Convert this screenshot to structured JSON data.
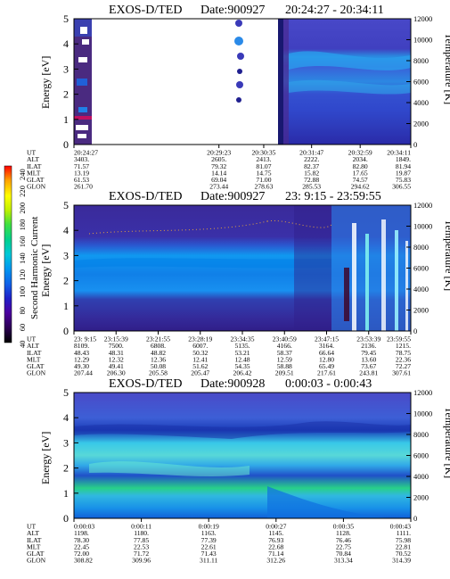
{
  "colorbar": {
    "label": "Second Harmonic Current",
    "ticks": [
      "40",
      "60",
      "80",
      "100",
      "120",
      "140",
      "160",
      "180",
      "200",
      "220",
      "240"
    ],
    "colors": [
      "#000000",
      "#2a0050",
      "#4b00a0",
      "#2020c8",
      "#1060e8",
      "#0098f0",
      "#00c8d8",
      "#00d090",
      "#40e040",
      "#c0f000",
      "#ffff00",
      "#ffa000",
      "#ff0000"
    ]
  },
  "panels": [
    {
      "title": "EXOS-D/TED",
      "date": "Date:900927",
      "time_range": "20:24:27 - 20:34:11",
      "ylabel": "Energy [eV]",
      "y2label": "Temperature [K]",
      "ytick_labels": [
        "0",
        "1",
        "2",
        "3",
        "4",
        "5"
      ],
      "y2tick_labels": [
        "0",
        "2000",
        "4000",
        "6000",
        "8000",
        "10000",
        "12000"
      ],
      "ephem_labels": [
        "UT",
        "ALT",
        "ILAT",
        "MLT",
        "GLAT",
        "GLON"
      ],
      "columns": [
        {
          "frac": 0.0,
          "vals": [
            "20:24:27",
            "3403.",
            "71.57",
            "13.19",
            "61.53",
            "261.70"
          ]
        },
        {
          "frac": 0.4304,
          "vals": [
            "20:29:23",
            "2605.",
            "79.32",
            "14.14",
            "69.04",
            "273.44"
          ]
        },
        {
          "frac": 0.5634,
          "vals": [
            "20:30:35",
            "2413.",
            "81.07",
            "14.75",
            "71.00",
            "278.63"
          ]
        },
        {
          "frac": 0.7055,
          "vals": [
            "20:31:47",
            "2222.",
            "82.37",
            "15.82",
            "72.88",
            "285.53"
          ]
        },
        {
          "frac": 0.8497,
          "vals": [
            "20:32:59",
            "2034.",
            "82.80",
            "17.65",
            "74.57",
            "294.62"
          ]
        },
        {
          "frac": 1.0,
          "vals": [
            "20:34:11",
            "1849.",
            "81.94",
            "19.87",
            "75.83",
            "306.55"
          ]
        }
      ]
    },
    {
      "title": "EXOS-D/TED",
      "date": "Date:900927",
      "time_range": "23: 9:15 - 23:59:55",
      "ylabel": "Energy [eV]",
      "y2label": "Temperature [K]",
      "ytick_labels": [
        "0",
        "1",
        "2",
        "3",
        "4",
        "5"
      ],
      "y2tick_labels": [
        "0",
        "2000",
        "4000",
        "6000",
        "8000",
        "10000",
        "12000"
      ],
      "ephem_labels": [
        "UT",
        "ALT",
        "ILAT",
        "MLT",
        "GLAT",
        "GLON"
      ],
      "columns": [
        {
          "frac": 0.0,
          "vals": [
            "23: 9:15",
            "8109.",
            "48.43",
            "12.29",
            "49.30",
            "207.44"
          ]
        },
        {
          "frac": 0.125,
          "vals": [
            "23:15:39",
            "7500.",
            "48.31",
            "12.32",
            "49.41",
            "206.30"
          ]
        },
        {
          "frac": 0.25,
          "vals": [
            "23:21:55",
            "6808.",
            "48.82",
            "12.36",
            "50.08",
            "205.58"
          ]
        },
        {
          "frac": 0.375,
          "vals": [
            "23:28:19",
            "6007.",
            "50.32",
            "12.41",
            "51.62",
            "205.47"
          ]
        },
        {
          "frac": 0.5,
          "vals": [
            "23:34:35",
            "5135.",
            "53.21",
            "12.48",
            "54.35",
            "206.42"
          ]
        },
        {
          "frac": 0.625,
          "vals": [
            "23:40:59",
            "4166.",
            "58.37",
            "12.59",
            "58.88",
            "209.51"
          ]
        },
        {
          "frac": 0.75,
          "vals": [
            "23:47:15",
            "3164.",
            "66.64",
            "12.80",
            "65.49",
            "217.61"
          ]
        },
        {
          "frac": 0.875,
          "vals": [
            "23:53:39",
            "2136.",
            "79.45",
            "13.60",
            "73.67",
            "243.81"
          ]
        },
        {
          "frac": 1.0,
          "vals": [
            "23:59:55",
            "1215.",
            "78.75",
            "22.36",
            "72.27",
            "307.61"
          ]
        }
      ]
    },
    {
      "title": "EXOS-D/TED",
      "date": "Date:900928",
      "time_range": "0:00:03 - 0:00:43",
      "ylabel": "Energy [eV]",
      "y2label": "Temperature [K]",
      "ytick_labels": [
        "0",
        "1",
        "2",
        "3",
        "4",
        "5"
      ],
      "y2tick_labels": [
        "0",
        "2000",
        "4000",
        "6000",
        "8000",
        "10000",
        "12000"
      ],
      "ephem_labels": [
        "UT",
        "ALT",
        "ILAT",
        "MLT",
        "GLAT",
        "GLON"
      ],
      "columns": [
        {
          "frac": 0.0,
          "vals": [
            "0:00:03",
            "1198.",
            "78.30",
            "22.45",
            "72.00",
            "308.82"
          ]
        },
        {
          "frac": 0.2,
          "vals": [
            "0:00:11",
            "1180.",
            "77.85",
            "22.53",
            "71.72",
            "309.96"
          ]
        },
        {
          "frac": 0.4,
          "vals": [
            "0:00:19",
            "1163.",
            "77.39",
            "22.61",
            "71.43",
            "311.11"
          ]
        },
        {
          "frac": 0.6,
          "vals": [
            "0:00:27",
            "1145.",
            "76.93",
            "22.68",
            "71.14",
            "312.26"
          ]
        },
        {
          "frac": 0.8,
          "vals": [
            "0:00:35",
            "1128.",
            "76.46",
            "22.75",
            "70.84",
            "313.34"
          ]
        },
        {
          "frac": 1.0,
          "vals": [
            "0:00:43",
            "1111.",
            "75.98",
            "22.81",
            "70.52",
            "314.39"
          ]
        }
      ]
    }
  ],
  "chart_data": [
    {
      "type": "heatmap",
      "title": "EXOS-D/TED Date:900927 20:24:27 - 20:34:11",
      "xlabel": "UT",
      "ylabel": "Energy [eV]",
      "y2label": "Temperature [K]",
      "ylim": [
        0,
        5
      ],
      "y2lim": [
        0,
        12000
      ],
      "x": [
        "20:24:27",
        "20:29:23",
        "20:30:35",
        "20:31:47",
        "20:32:59",
        "20:34:11"
      ],
      "colorbar_label": "Second Harmonic Current",
      "colorbar_range": [
        40,
        240
      ]
    },
    {
      "type": "heatmap",
      "title": "EXOS-D/TED Date:900927 23: 9:15 - 23:59:55",
      "xlabel": "UT",
      "ylabel": "Energy [eV]",
      "y2label": "Temperature [K]",
      "ylim": [
        0,
        5
      ],
      "y2lim": [
        0,
        12000
      ],
      "x": [
        "23: 9:15",
        "23:15:39",
        "23:21:55",
        "23:28:19",
        "23:34:35",
        "23:40:59",
        "23:47:15",
        "23:53:39",
        "23:59:55"
      ],
      "colorbar_label": "Second Harmonic Current",
      "colorbar_range": [
        40,
        240
      ]
    },
    {
      "type": "heatmap",
      "title": "EXOS-D/TED Date:900928 0:00:03 - 0:00:43",
      "xlabel": "UT",
      "ylabel": "Energy [eV]",
      "y2label": "Temperature [K]",
      "ylim": [
        0,
        5
      ],
      "y2lim": [
        0,
        12000
      ],
      "x": [
        "0:00:03",
        "0:00:11",
        "0:00:19",
        "0:00:27",
        "0:00:35",
        "0:00:43"
      ],
      "colorbar_label": "Second Harmonic Current",
      "colorbar_range": [
        40,
        240
      ]
    }
  ]
}
